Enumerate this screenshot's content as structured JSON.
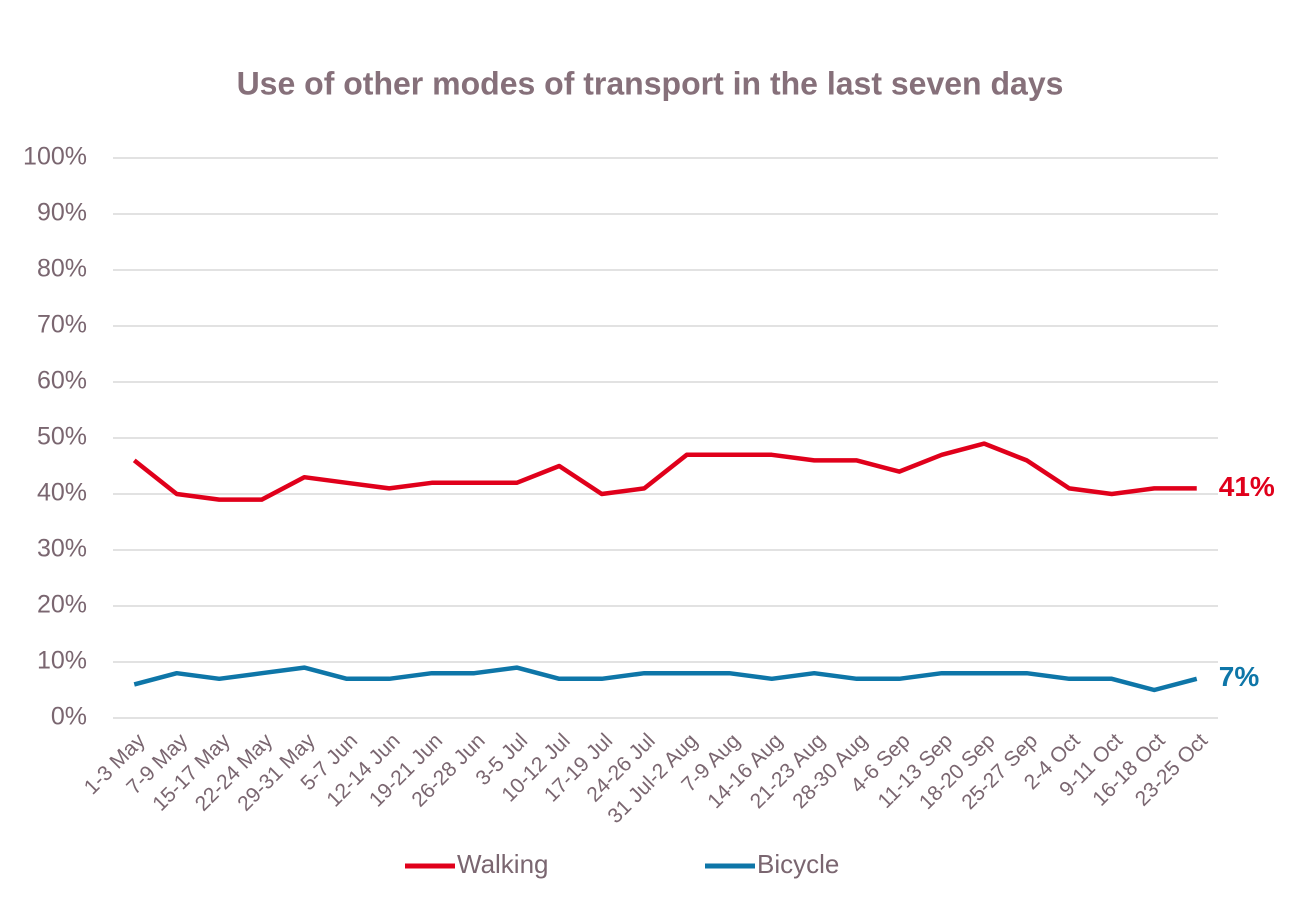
{
  "chart_data": {
    "type": "line",
    "title": "Use of other modes of transport in the last seven days",
    "categories": [
      "1-3 May",
      "7-9 May",
      "15-17 May",
      "22-24 May",
      "29-31 May",
      "5-7 Jun",
      "12-14 Jun",
      "19-21 Jun",
      "26-28 Jun",
      "3-5 Jul",
      "10-12 Jul",
      "17-19 Jul",
      "24-26 Jul",
      "31 Jul-2 Aug",
      "7-9 Aug",
      "14-16 Aug",
      "21-23 Aug",
      "28-30 Aug",
      "4-6 Sep",
      "11-13 Sep",
      "18-20 Sep",
      "25-27 Sep",
      "2-4 Oct",
      "9-11 Oct",
      "16-18 Oct",
      "23-25 Oct"
    ],
    "series": [
      {
        "name": "Walking",
        "color": "#e0001b",
        "values": [
          46,
          40,
          39,
          39,
          43,
          42,
          41,
          42,
          42,
          42,
          45,
          40,
          41,
          47,
          47,
          47,
          46,
          46,
          44,
          47,
          49,
          46,
          41,
          40,
          41,
          41
        ],
        "value_labels": [
          null,
          null,
          null,
          null,
          null,
          null,
          null,
          null,
          null,
          null,
          null,
          null,
          null,
          null,
          null,
          null,
          null,
          null,
          null,
          null,
          null,
          null,
          null,
          null,
          null,
          "41%"
        ]
      },
      {
        "name": "Bicycle",
        "color": "#0e76a8",
        "values": [
          6,
          8,
          7,
          8,
          9,
          7,
          7,
          8,
          8,
          9,
          7,
          7,
          8,
          8,
          8,
          7,
          8,
          7,
          7,
          8,
          8,
          8,
          7,
          7,
          5,
          7
        ],
        "value_labels": [
          null,
          null,
          null,
          null,
          null,
          null,
          null,
          null,
          null,
          null,
          null,
          null,
          null,
          null,
          null,
          null,
          null,
          null,
          null,
          null,
          null,
          null,
          null,
          null,
          null,
          "7%"
        ]
      }
    ],
    "ylim": [
      0,
      100
    ],
    "yticks": [
      {
        "value": 0,
        "label": "0%"
      },
      {
        "value": 10,
        "label": "10%"
      },
      {
        "value": 20,
        "label": "20%"
      },
      {
        "value": 30,
        "label": "30%"
      },
      {
        "value": 40,
        "label": "40%"
      },
      {
        "value": 50,
        "label": "50%"
      },
      {
        "value": 60,
        "label": "60%"
      },
      {
        "value": 70,
        "label": "70%"
      },
      {
        "value": 80,
        "label": "80%"
      },
      {
        "value": 90,
        "label": "90%"
      },
      {
        "value": 100,
        "label": "100%"
      }
    ],
    "grid": true,
    "legend": "bottom"
  }
}
